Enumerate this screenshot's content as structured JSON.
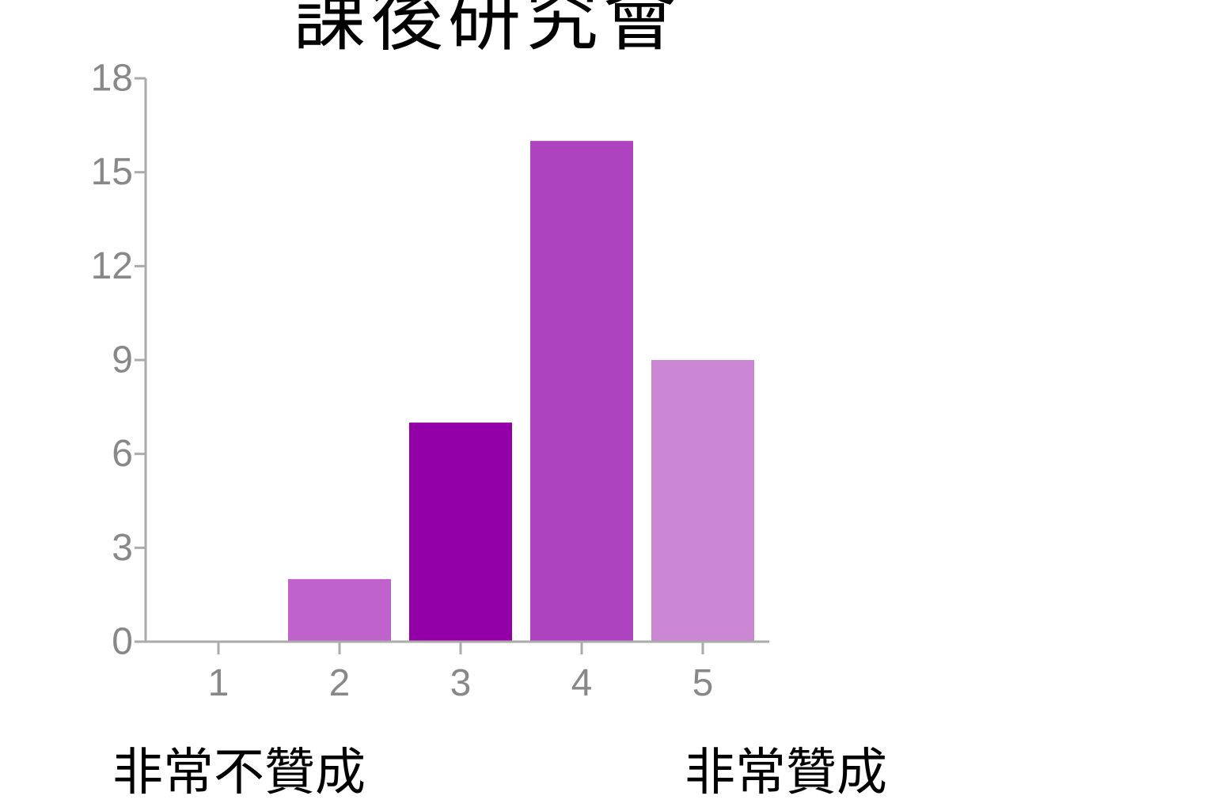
{
  "chart_data": {
    "type": "bar",
    "title": "課後研究會",
    "categories": [
      "1",
      "2",
      "3",
      "4",
      "5"
    ],
    "values": [
      0,
      2,
      7,
      16,
      9
    ],
    "bar_colors": [
      "#bf62cc",
      "#bf62cc",
      "#9400a8",
      "#ae43c0",
      "#cb87d4"
    ],
    "ylim": [
      0,
      18
    ],
    "yticks": [
      0,
      3,
      6,
      9,
      12,
      15,
      18
    ],
    "xlabel": "",
    "ylabel": "",
    "grid": false,
    "legend": "none",
    "axis_color": "#aaaaaa",
    "tick_label_color": "#888888"
  },
  "scale_labels": {
    "low": "非常不贊成",
    "high": "非常贊成"
  }
}
